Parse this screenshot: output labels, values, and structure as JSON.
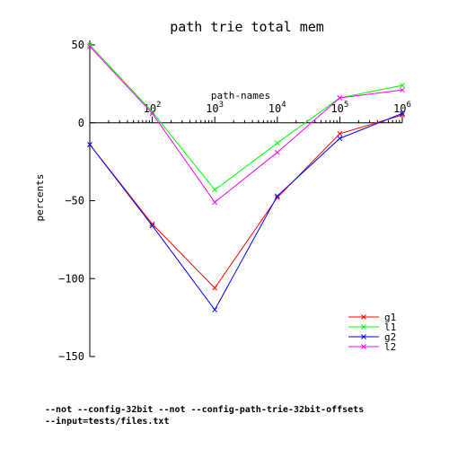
{
  "chart_data": {
    "type": "line",
    "title": "path trie total mem",
    "xlabel": "path-names",
    "ylabel": "percents",
    "x_scale": "log10",
    "xlim": [
      10,
      1000000
    ],
    "ylim": [
      -150,
      50
    ],
    "y_ticks": [
      50,
      0,
      -50,
      -100,
      -150
    ],
    "x_ticks": [
      {
        "value": 100,
        "base": "10",
        "exp": "2"
      },
      {
        "value": 1000,
        "base": "10",
        "exp": "3"
      },
      {
        "value": 10000,
        "base": "10",
        "exp": "4"
      },
      {
        "value": 100000,
        "base": "10",
        "exp": "5"
      },
      {
        "value": 1000000,
        "base": "10",
        "exp": "6"
      }
    ],
    "x": [
      10,
      100,
      1000,
      10000,
      100000,
      1000000
    ],
    "series": [
      {
        "name": "g1",
        "color": "#ff0000",
        "values": [
          -14,
          -65,
          -106,
          -48,
          -7,
          5
        ]
      },
      {
        "name": "l1",
        "color": "#00ff00",
        "values": [
          50,
          7,
          -43,
          -13,
          16,
          24
        ]
      },
      {
        "name": "g2",
        "color": "#0000ff",
        "values": [
          -14,
          -66,
          -120,
          -47,
          -10,
          6
        ]
      },
      {
        "name": "l2",
        "color": "#ff00ff",
        "values": [
          49,
          6,
          -51,
          -19,
          16,
          21
        ]
      }
    ],
    "legend_position": "bottom-right",
    "grid": false
  },
  "footer": {
    "line1": "--not --config-32bit --not --config-path-trie-32bit-offsets",
    "line2": "--input=tests/files.txt"
  }
}
